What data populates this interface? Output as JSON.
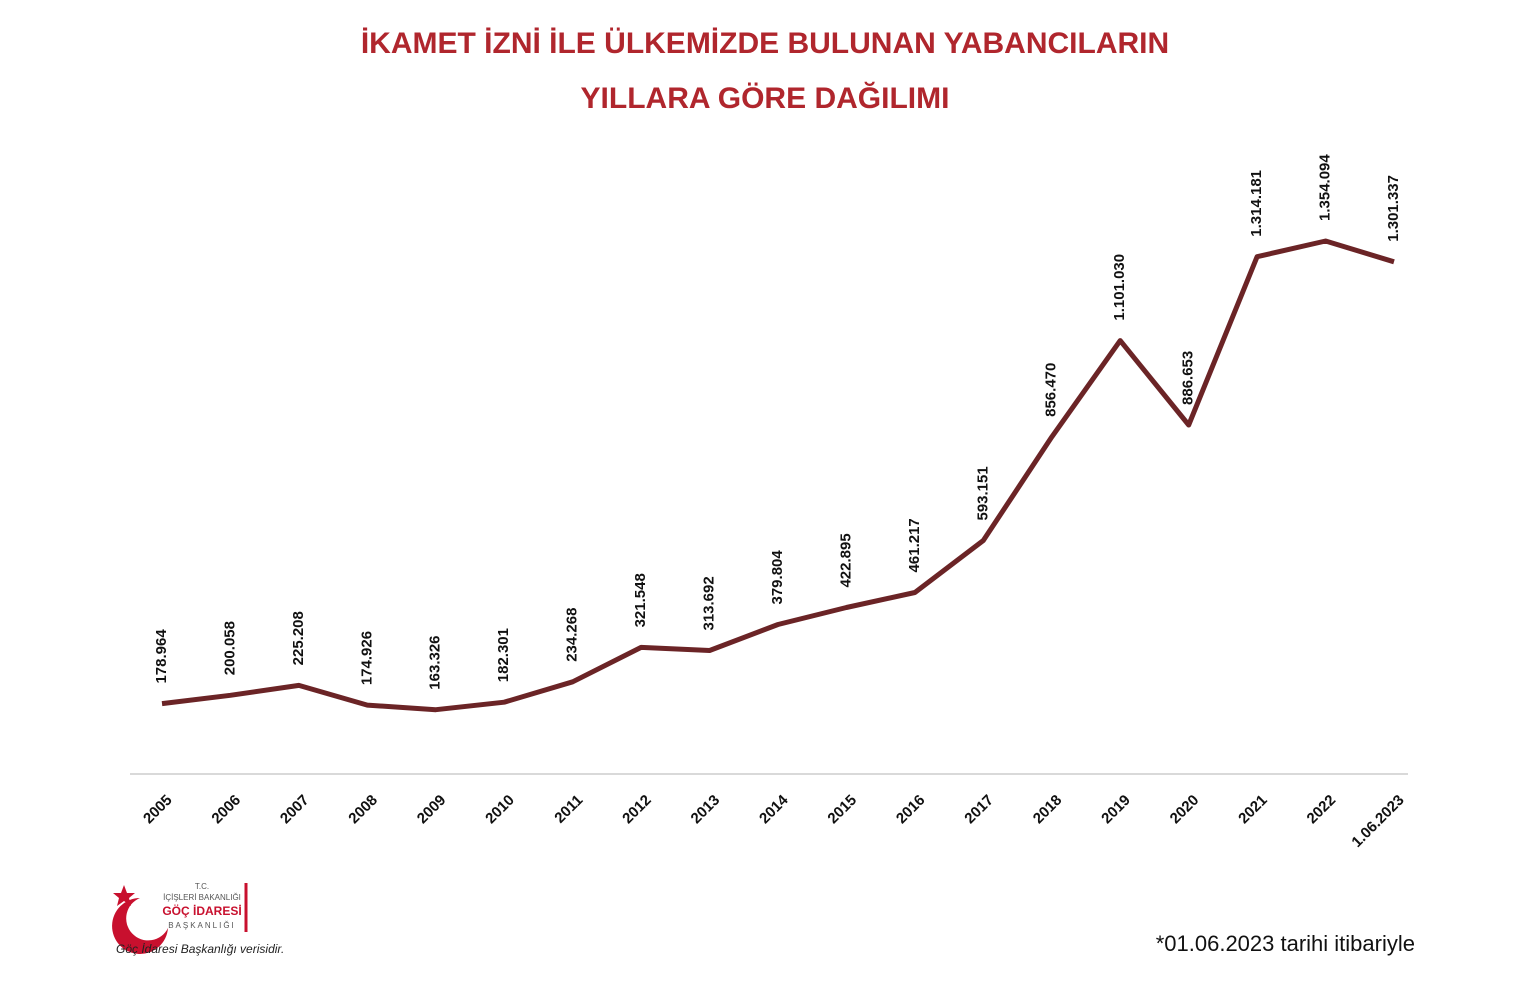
{
  "chart_data": {
    "type": "line",
    "title": [
      "İKAMET İZNİ İLE ÜLKEMİZDE BULUNAN YABANCILARIN",
      "YILLARA GÖRE DAĞILIMI"
    ],
    "categories": [
      "2005",
      "2006",
      "2007",
      "2008",
      "2009",
      "2010",
      "2011",
      "2012",
      "2013",
      "2014",
      "2015",
      "2016",
      "2017",
      "2018",
      "2019",
      "2020",
      "2021",
      "2022",
      "1.06.2023"
    ],
    "values": [
      178964,
      200058,
      225208,
      174926,
      163326,
      182301,
      234268,
      321548,
      313692,
      379804,
      422895,
      461217,
      593151,
      856470,
      1101030,
      886653,
      1314181,
      1354094,
      1301337
    ],
    "value_labels": [
      "178.964",
      "200.058",
      "225.208",
      "174.926",
      "163.326",
      "182.301",
      "234.268",
      "321.548",
      "313.692",
      "379.804",
      "422.895",
      "461.217",
      "593.151",
      "856.470",
      "1.101.030",
      "886.653",
      "1.314.181",
      "1.354.094",
      "1.301.337"
    ],
    "color": "#6b2426",
    "footnote": "*01.06.2023 tarihi itibariyle",
    "source": "Göç İdaresi Başkanlığı verisidir.",
    "logo": {
      "line1": "T.C.",
      "line2": "İÇİŞLERİ BAKANLIĞI",
      "line3": "GÖÇ İDARESİ",
      "line4": "BAŞKANLIĞI"
    }
  }
}
